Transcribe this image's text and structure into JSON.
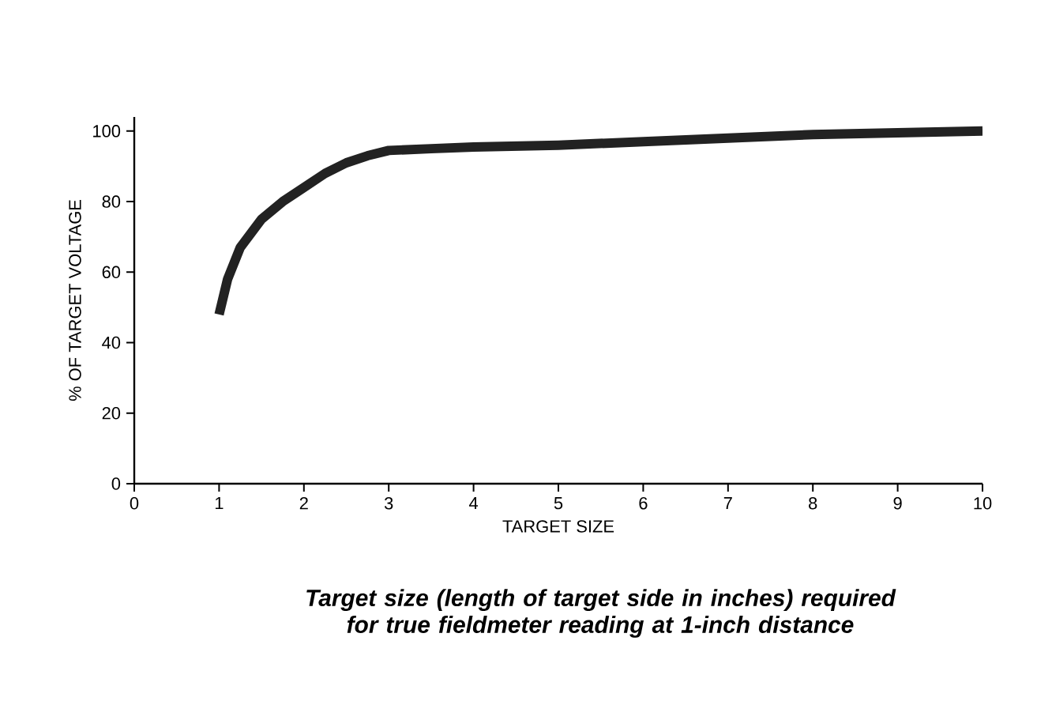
{
  "chart_data": {
    "type": "line",
    "xlabel": "TARGET SIZE",
    "ylabel": "% OF TARGET VOLTAGE",
    "x": [
      1,
      1.1,
      1.25,
      1.5,
      1.75,
      2,
      2.25,
      2.5,
      2.75,
      3,
      3.5,
      4,
      5,
      6,
      7,
      8,
      9,
      10
    ],
    "series": [
      {
        "color": "#222222",
        "values": [
          48,
          58,
          67,
          75,
          80,
          84,
          88,
          91,
          93,
          94.5,
          95,
          95.5,
          96,
          97,
          98,
          99,
          99.5,
          100
        ]
      }
    ],
    "xlim": [
      0,
      10
    ],
    "ylim": [
      0,
      104
    ],
    "xticks": [
      0,
      1,
      2,
      3,
      4,
      5,
      6,
      7,
      8,
      9,
      10
    ],
    "yticks": [
      0,
      20,
      40,
      60,
      80,
      100
    ],
    "marker": "none",
    "line_style": "solid",
    "annotations": [
      "*Target size (length of target side in inches) required for true fieldmeter reading at 1-inch distance*"
    ]
  }
}
